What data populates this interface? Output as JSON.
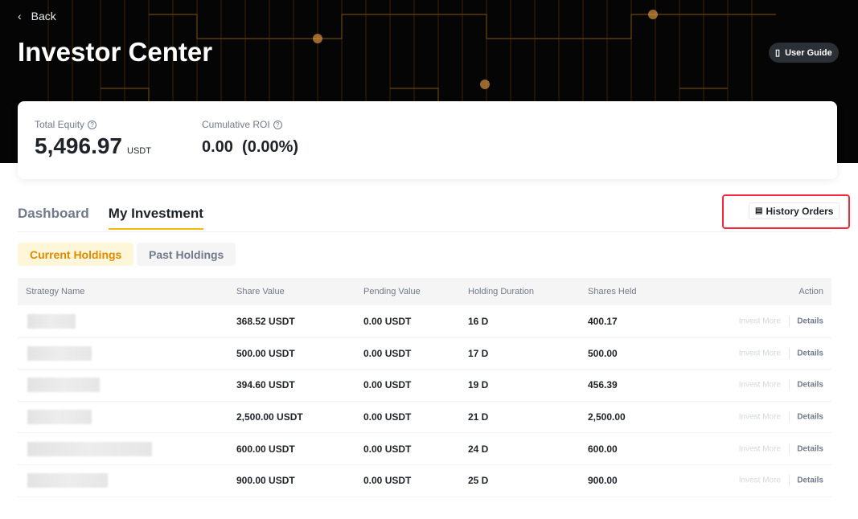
{
  "header": {
    "back_label": "Back",
    "title": "Investor Center",
    "user_guide_label": "User Guide"
  },
  "summary": {
    "total_equity_label": "Total Equity",
    "total_equity_value": "5,496.97",
    "total_equity_unit": "USDT",
    "roi_label": "Cumulative ROI",
    "roi_value": "0.00  (0.00%)"
  },
  "tabs": [
    {
      "label": "Dashboard"
    },
    {
      "label": "My Investment"
    }
  ],
  "history_orders_label": "History Orders",
  "subtabs": [
    {
      "label": "Current Holdings"
    },
    {
      "label": "Past Holdings"
    }
  ],
  "table": {
    "columns": [
      "Strategy Name",
      "Share Value",
      "Pending Value",
      "Holding Duration",
      "Shares Held",
      "Action"
    ],
    "rows": [
      {
        "share_value": "368.52 USDT",
        "pending_value": "0.00 USDT",
        "duration": "16 D",
        "shares": "400.17"
      },
      {
        "share_value": "500.00 USDT",
        "pending_value": "0.00 USDT",
        "duration": "17 D",
        "shares": "500.00"
      },
      {
        "share_value": "394.60 USDT",
        "pending_value": "0.00 USDT",
        "duration": "19 D",
        "shares": "456.39"
      },
      {
        "share_value": "2,500.00 USDT",
        "pending_value": "0.00 USDT",
        "duration": "21 D",
        "shares": "2,500.00"
      },
      {
        "share_value": "600.00 USDT",
        "pending_value": "0.00 USDT",
        "duration": "24 D",
        "shares": "600.00"
      },
      {
        "share_value": "900.00 USDT",
        "pending_value": "0.00 USDT",
        "duration": "25 D",
        "shares": "900.00"
      }
    ],
    "invest_more_label": "Invest More",
    "details_label": "Details"
  },
  "colors": {
    "accent": "#f0b90b",
    "highlight_box": "#f6273a",
    "active_pill_text": "#e08a00"
  }
}
